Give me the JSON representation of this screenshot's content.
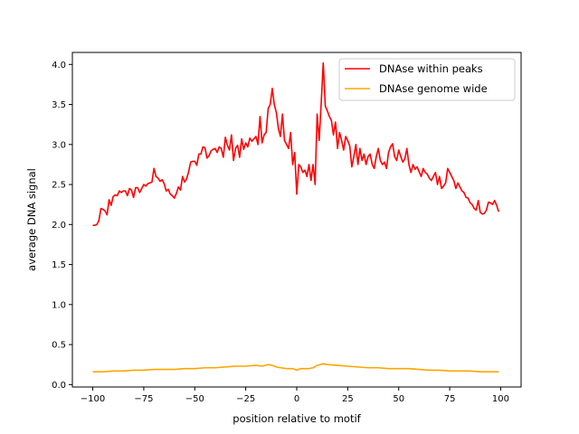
{
  "chart_data": {
    "type": "line",
    "title": "",
    "xlabel": "position relative to motif",
    "ylabel": "average DNA signal",
    "xlim": [
      -110,
      110
    ],
    "ylim": [
      -0.03,
      4.15
    ],
    "xticks": [
      -100,
      -75,
      -50,
      -25,
      0,
      25,
      50,
      75,
      100
    ],
    "xtick_labels": [
      "−100",
      "−75",
      "−50",
      "−25",
      "0",
      "25",
      "50",
      "75",
      "100"
    ],
    "yticks": [
      0.0,
      0.5,
      1.0,
      1.5,
      2.0,
      2.5,
      3.0,
      3.5,
      4.0
    ],
    "ytick_labels": [
      "0.0",
      "0.5",
      "1.0",
      "1.5",
      "2.0",
      "2.5",
      "3.0",
      "3.5",
      "4.0"
    ],
    "grid": false,
    "legend_position": "top-right",
    "series": [
      {
        "name": "DNAse within peaks",
        "color": "#ff0000",
        "points": [
          [
            -100,
            1.99
          ],
          [
            -99,
            1.99
          ],
          [
            -98,
            2.0
          ],
          [
            -97,
            2.05
          ],
          [
            -96,
            2.2
          ],
          [
            -95,
            2.19
          ],
          [
            -94,
            2.17
          ],
          [
            -93,
            2.12
          ],
          [
            -92,
            2.31
          ],
          [
            -91,
            2.24
          ],
          [
            -90,
            2.35
          ],
          [
            -89,
            2.37
          ],
          [
            -88,
            2.36
          ],
          [
            -87,
            2.42
          ],
          [
            -86,
            2.4
          ],
          [
            -85,
            2.42
          ],
          [
            -84,
            2.42
          ],
          [
            -83,
            2.36
          ],
          [
            -82,
            2.45
          ],
          [
            -81,
            2.43
          ],
          [
            -80,
            2.34
          ],
          [
            -79,
            2.46
          ],
          [
            -78,
            2.46
          ],
          [
            -77,
            2.4
          ],
          [
            -76,
            2.45
          ],
          [
            -75,
            2.5
          ],
          [
            -74,
            2.48
          ],
          [
            -73,
            2.51
          ],
          [
            -72,
            2.52
          ],
          [
            -71,
            2.53
          ],
          [
            -70,
            2.7
          ],
          [
            -69,
            2.6
          ],
          [
            -68,
            2.58
          ],
          [
            -67,
            2.54
          ],
          [
            -66,
            2.56
          ],
          [
            -65,
            2.51
          ],
          [
            -64,
            2.42
          ],
          [
            -63,
            2.44
          ],
          [
            -62,
            2.38
          ],
          [
            -61,
            2.36
          ],
          [
            -60,
            2.33
          ],
          [
            -59,
            2.39
          ],
          [
            -58,
            2.47
          ],
          [
            -57,
            2.43
          ],
          [
            -56,
            2.6
          ],
          [
            -55,
            2.53
          ],
          [
            -54,
            2.57
          ],
          [
            -53,
            2.66
          ],
          [
            -52,
            2.78
          ],
          [
            -51,
            2.79
          ],
          [
            -50,
            2.79
          ],
          [
            -49,
            2.74
          ],
          [
            -48,
            2.88
          ],
          [
            -47,
            2.88
          ],
          [
            -46,
            2.97
          ],
          [
            -45,
            2.96
          ],
          [
            -44,
            2.83
          ],
          [
            -43,
            2.86
          ],
          [
            -42,
            2.92
          ],
          [
            -41,
            2.94
          ],
          [
            -40,
            2.95
          ],
          [
            -39,
            2.9
          ],
          [
            -38,
            2.97
          ],
          [
            -37,
            2.95
          ],
          [
            -36,
            2.84
          ],
          [
            -35,
            3.09
          ],
          [
            -34,
            2.99
          ],
          [
            -33,
            2.93
          ],
          [
            -32,
            3.12
          ],
          [
            -31,
            2.8
          ],
          [
            -30,
            2.95
          ],
          [
            -29,
            2.99
          ],
          [
            -28,
            2.84
          ],
          [
            -27,
            3.07
          ],
          [
            -26,
            2.94
          ],
          [
            -25,
            3.02
          ],
          [
            -24,
            2.97
          ],
          [
            -23,
            3.08
          ],
          [
            -22,
            3.04
          ],
          [
            -21,
            3.07
          ],
          [
            -20,
            3.1
          ],
          [
            -19,
            3.0
          ],
          [
            -18,
            3.35
          ],
          [
            -17,
            3.02
          ],
          [
            -16,
            3.12
          ],
          [
            -15,
            3.15
          ],
          [
            -14,
            3.45
          ],
          [
            -13,
            3.5
          ],
          [
            -12,
            3.7
          ],
          [
            -11,
            3.5
          ],
          [
            -10,
            3.4
          ],
          [
            -9,
            3.2
          ],
          [
            -8,
            3.1
          ],
          [
            -7,
            3.38
          ],
          [
            -6,
            3.05
          ],
          [
            -5,
            3.0
          ],
          [
            -4,
            2.95
          ],
          [
            -3,
            3.15
          ],
          [
            -2,
            2.75
          ],
          [
            -1,
            2.9
          ],
          [
            0,
            2.38
          ],
          [
            1,
            2.75
          ],
          [
            2,
            2.72
          ],
          [
            3,
            2.65
          ],
          [
            4,
            2.68
          ],
          [
            5,
            2.6
          ],
          [
            6,
            2.75
          ],
          [
            7,
            2.55
          ],
          [
            8,
            2.75
          ],
          [
            9,
            2.5
          ],
          [
            10,
            3.38
          ],
          [
            11,
            3.05
          ],
          [
            12,
            3.52
          ],
          [
            13,
            4.02
          ],
          [
            14,
            3.48
          ],
          [
            15,
            3.42
          ],
          [
            16,
            3.35
          ],
          [
            17,
            3.3
          ],
          [
            18,
            3.12
          ],
          [
            19,
            3.28
          ],
          [
            20,
            2.95
          ],
          [
            21,
            3.15
          ],
          [
            22,
            3.05
          ],
          [
            23,
            2.93
          ],
          [
            24,
            3.1
          ],
          [
            25,
            3.05
          ],
          [
            26,
            2.98
          ],
          [
            27,
            2.72
          ],
          [
            28,
            2.85
          ],
          [
            29,
            3.0
          ],
          [
            30,
            2.75
          ],
          [
            31,
            2.95
          ],
          [
            32,
            2.8
          ],
          [
            33,
            2.88
          ],
          [
            34,
            2.75
          ],
          [
            35,
            2.85
          ],
          [
            36,
            2.88
          ],
          [
            37,
            2.75
          ],
          [
            38,
            2.7
          ],
          [
            39,
            2.85
          ],
          [
            40,
            2.95
          ],
          [
            41,
            2.8
          ],
          [
            42,
            2.75
          ],
          [
            43,
            2.78
          ],
          [
            44,
            2.7
          ],
          [
            45,
            2.9
          ],
          [
            46,
            2.97
          ],
          [
            47,
            3.01
          ],
          [
            48,
            2.85
          ],
          [
            49,
            2.8
          ],
          [
            50,
            2.93
          ],
          [
            51,
            2.85
          ],
          [
            52,
            2.78
          ],
          [
            53,
            2.82
          ],
          [
            54,
            2.95
          ],
          [
            55,
            2.75
          ],
          [
            56,
            2.65
          ],
          [
            57,
            2.75
          ],
          [
            58,
            2.69
          ],
          [
            59,
            2.72
          ],
          [
            60,
            2.66
          ],
          [
            61,
            2.6
          ],
          [
            62,
            2.7
          ],
          [
            63,
            2.65
          ],
          [
            64,
            2.63
          ],
          [
            65,
            2.58
          ],
          [
            66,
            2.55
          ],
          [
            67,
            2.6
          ],
          [
            68,
            2.65
          ],
          [
            69,
            2.5
          ],
          [
            70,
            2.6
          ],
          [
            71,
            2.45
          ],
          [
            72,
            2.48
          ],
          [
            73,
            2.52
          ],
          [
            74,
            2.7
          ],
          [
            75,
            2.65
          ],
          [
            76,
            2.6
          ],
          [
            77,
            2.55
          ],
          [
            78,
            2.45
          ],
          [
            79,
            2.52
          ],
          [
            80,
            2.47
          ],
          [
            81,
            2.42
          ],
          [
            82,
            2.4
          ],
          [
            83,
            2.34
          ],
          [
            84,
            2.33
          ],
          [
            85,
            2.27
          ],
          [
            86,
            2.25
          ],
          [
            87,
            2.2
          ],
          [
            88,
            2.18
          ],
          [
            89,
            2.3
          ],
          [
            90,
            2.15
          ],
          [
            91,
            2.13
          ],
          [
            92,
            2.14
          ],
          [
            93,
            2.18
          ],
          [
            94,
            2.28
          ],
          [
            95,
            2.27
          ],
          [
            96,
            2.25
          ],
          [
            97,
            2.3
          ],
          [
            98,
            2.24
          ],
          [
            99,
            2.16
          ]
        ]
      },
      {
        "name": "DNAse genome wide",
        "color": "#ffa500",
        "points": [
          [
            -100,
            0.16
          ],
          [
            -95,
            0.16
          ],
          [
            -90,
            0.17
          ],
          [
            -85,
            0.17
          ],
          [
            -80,
            0.18
          ],
          [
            -75,
            0.18
          ],
          [
            -70,
            0.19
          ],
          [
            -65,
            0.19
          ],
          [
            -60,
            0.19
          ],
          [
            -55,
            0.2
          ],
          [
            -50,
            0.2
          ],
          [
            -45,
            0.21
          ],
          [
            -40,
            0.21
          ],
          [
            -35,
            0.22
          ],
          [
            -30,
            0.23
          ],
          [
            -25,
            0.23
          ],
          [
            -20,
            0.24
          ],
          [
            -17,
            0.23
          ],
          [
            -14,
            0.25
          ],
          [
            -12,
            0.24
          ],
          [
            -10,
            0.22
          ],
          [
            -8,
            0.21
          ],
          [
            -5,
            0.2
          ],
          [
            -2,
            0.2
          ],
          [
            0,
            0.18
          ],
          [
            2,
            0.2
          ],
          [
            4,
            0.2
          ],
          [
            6,
            0.2
          ],
          [
            8,
            0.21
          ],
          [
            10,
            0.24
          ],
          [
            13,
            0.26
          ],
          [
            15,
            0.25
          ],
          [
            20,
            0.24
          ],
          [
            25,
            0.23
          ],
          [
            30,
            0.22
          ],
          [
            35,
            0.21
          ],
          [
            40,
            0.21
          ],
          [
            45,
            0.2
          ],
          [
            50,
            0.2
          ],
          [
            55,
            0.2
          ],
          [
            60,
            0.19
          ],
          [
            65,
            0.18
          ],
          [
            70,
            0.18
          ],
          [
            75,
            0.17
          ],
          [
            80,
            0.17
          ],
          [
            85,
            0.17
          ],
          [
            90,
            0.16
          ],
          [
            95,
            0.16
          ],
          [
            99,
            0.16
          ]
        ]
      }
    ]
  }
}
